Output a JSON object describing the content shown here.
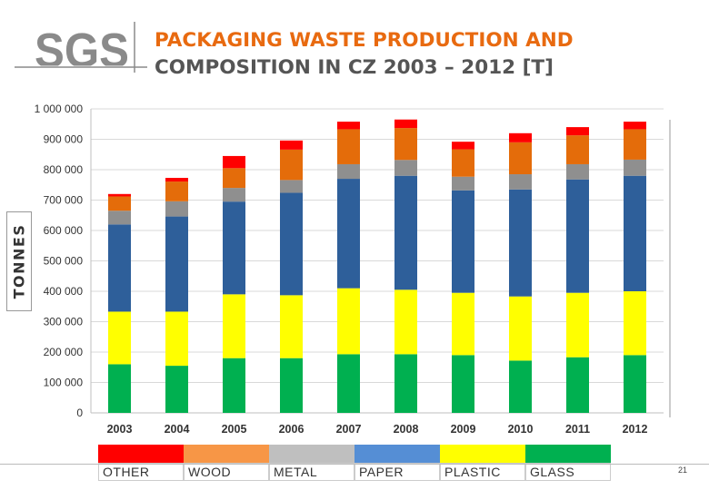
{
  "logo": {
    "text": "SGS"
  },
  "title": {
    "line1": "PACKAGING WASTE PRODUCTION AND",
    "line2": "COMPOSITION IN CZ 2003 – 2012 [T]"
  },
  "page_number": "21",
  "chart_data": {
    "type": "bar",
    "stacked": true,
    "ylabel": "TONNES",
    "ylim": [
      0,
      1000000
    ],
    "yticks": [
      0,
      100000,
      200000,
      300000,
      400000,
      500000,
      600000,
      700000,
      800000,
      900000,
      1000000
    ],
    "ytick_labels": [
      "0",
      "100 000",
      "200 000",
      "300 000",
      "400 000",
      "500 000",
      "600 000",
      "700 000",
      "800 000",
      "900 000",
      "1 000 000"
    ],
    "categories": [
      "2003",
      "2004",
      "2005",
      "2006",
      "2007",
      "2008",
      "2009",
      "2010",
      "2011",
      "2012"
    ],
    "grid": true,
    "legend_position": "bottom",
    "series": [
      {
        "name": "GLASS",
        "color": "#00b050",
        "values": [
          160000,
          155000,
          180000,
          180000,
          193000,
          193000,
          190000,
          172000,
          183000,
          190000
        ]
      },
      {
        "name": "PLASTIC",
        "color": "#ffff00",
        "values": [
          173000,
          178000,
          210000,
          207000,
          217000,
          212000,
          205000,
          211000,
          212000,
          210000
        ]
      },
      {
        "name": "PAPER",
        "color": "#2e5f9a",
        "values": [
          287000,
          313000,
          305000,
          337000,
          360000,
          375000,
          337000,
          352000,
          373000,
          380000
        ]
      },
      {
        "name": "METAL",
        "color": "#8f8f8f",
        "values": [
          45000,
          50000,
          45000,
          42000,
          48000,
          52000,
          45000,
          50000,
          50000,
          53000
        ]
      },
      {
        "name": "WOOD",
        "color": "#e46c0a",
        "values": [
          47000,
          65000,
          65000,
          100000,
          115000,
          105000,
          90000,
          105000,
          95000,
          100000
        ]
      },
      {
        "name": "OTHER",
        "color": "#ff0000",
        "values": [
          8000,
          12000,
          40000,
          30000,
          25000,
          28000,
          25000,
          30000,
          27000,
          25000
        ]
      }
    ],
    "legend_order": [
      {
        "name": "OTHER",
        "color": "#ff0000"
      },
      {
        "name": "WOOD",
        "color": "#f79646"
      },
      {
        "name": "METAL",
        "color": "#bfbfbf"
      },
      {
        "name": "PAPER",
        "color": "#558ed5"
      },
      {
        "name": "PLASTIC",
        "color": "#ffff00"
      },
      {
        "name": "GLASS",
        "color": "#00b050"
      }
    ]
  }
}
